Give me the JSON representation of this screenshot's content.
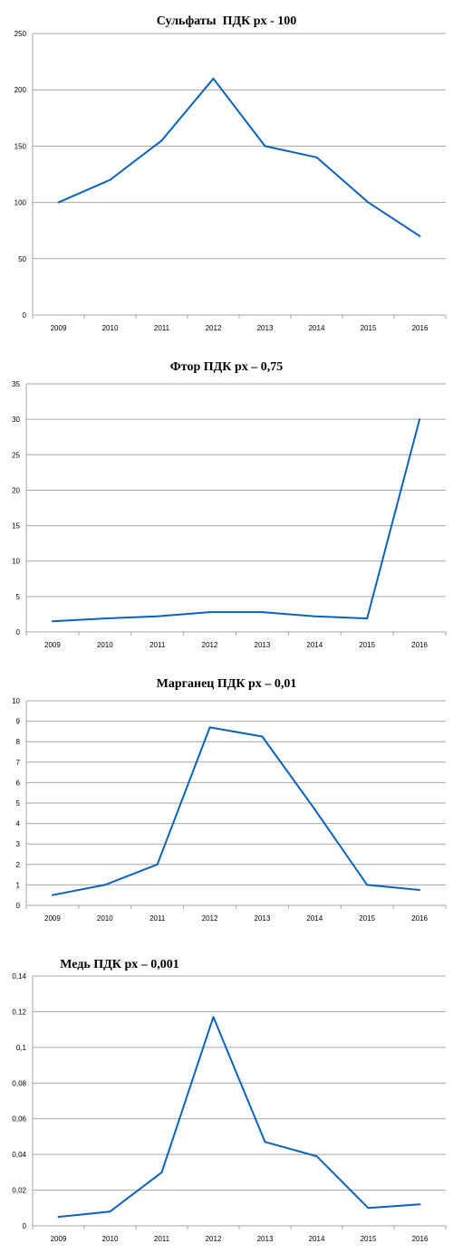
{
  "theme": {
    "line_color": "#0a63b8",
    "grid_color": "#a6a6a6"
  },
  "chart_data": [
    {
      "type": "line",
      "title": "Сульфаты  ПДК рх - 100",
      "categories": [
        "2009",
        "2010",
        "2011",
        "2012",
        "2013",
        "2014",
        "2015",
        "2016"
      ],
      "values": [
        100,
        120,
        155,
        210,
        150,
        140,
        100,
        70
      ],
      "ylim": [
        0,
        250
      ],
      "yticks": [
        0,
        50,
        100,
        150,
        200,
        250
      ],
      "ytick_labels": [
        "0",
        "50",
        "100",
        "150",
        "200",
        "250"
      ],
      "grid": true,
      "legend": "none"
    },
    {
      "type": "line",
      "title": "Фтор ПДК рх – 0,75",
      "categories": [
        "2009",
        "2010",
        "2011",
        "2012",
        "2013",
        "2014",
        "2015",
        "2016"
      ],
      "values": [
        1.5,
        1.9,
        2.2,
        2.8,
        2.8,
        2.2,
        1.9,
        30
      ],
      "ylim": [
        0,
        35
      ],
      "yticks": [
        0,
        5,
        10,
        15,
        20,
        25,
        30,
        35
      ],
      "ytick_labels": [
        "0",
        "5",
        "10",
        "15",
        "20",
        "25",
        "30",
        "35"
      ],
      "grid": true,
      "legend": "none"
    },
    {
      "type": "line",
      "title": "Марганец ПДК рх – 0,01",
      "categories": [
        "2009",
        "2010",
        "2011",
        "2012",
        "2013",
        "2014",
        "2015",
        "2016"
      ],
      "values": [
        0.5,
        1.0,
        2.0,
        8.7,
        8.25,
        4.7,
        1.0,
        0.75
      ],
      "ylim": [
        0,
        10
      ],
      "yticks": [
        0,
        1,
        2,
        3,
        4,
        5,
        6,
        7,
        8,
        9,
        10
      ],
      "ytick_labels": [
        "0",
        "1",
        "2",
        "3",
        "4",
        "5",
        "6",
        "7",
        "8",
        "9",
        "10"
      ],
      "grid": true,
      "legend": "none"
    },
    {
      "type": "line",
      "title": "Медь ПДК рх – 0,001",
      "categories": [
        "2009",
        "2010",
        "2011",
        "2012",
        "2013",
        "2014",
        "2015",
        "2016"
      ],
      "values": [
        0.005,
        0.008,
        0.03,
        0.117,
        0.047,
        0.039,
        0.01,
        0.012
      ],
      "ylim": [
        0,
        0.14
      ],
      "yticks": [
        0,
        0.02,
        0.04,
        0.06,
        0.08,
        0.1,
        0.12,
        0.14
      ],
      "ytick_labels": [
        "0",
        "0,02",
        "0,04",
        "0,06",
        "0,08",
        "0,1",
        "0,12",
        "0,14"
      ],
      "grid": true,
      "legend": "none"
    }
  ]
}
